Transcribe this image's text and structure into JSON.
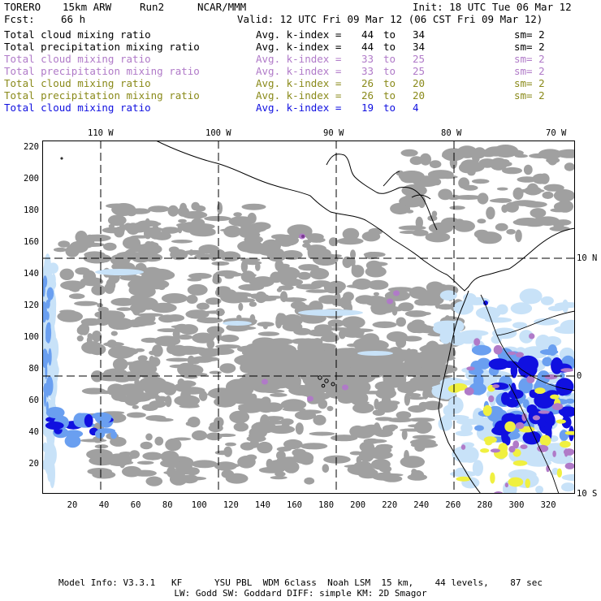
{
  "header": {
    "model": "TORERO",
    "resolution": "15km ARW",
    "run": "Run2",
    "org": "NCAR/MMM",
    "init": "Init: 18 UTC Tue 06 Mar 12",
    "fcst_label": "Fcst:",
    "fcst_value": "66 h",
    "valid": "Valid: 12 UTC Fri 09 Mar 12 (06 CST Fri 09 Mar 12)"
  },
  "legend": [
    {
      "field": "Total cloud mixing ratio",
      "k_label": "Avg. k-index =",
      "from": "44",
      "to_word": "to",
      "to": "34",
      "sm": "sm= 2",
      "color": "#000000"
    },
    {
      "field": "Total precipitation mixing ratio",
      "k_label": "Avg. k-index =",
      "from": "44",
      "to_word": "to",
      "to": "34",
      "sm": "sm= 2",
      "color": "#000000"
    },
    {
      "field": "Total cloud mixing ratio",
      "k_label": "Avg. k-index =",
      "from": "33",
      "to_word": "to",
      "to": "25",
      "sm": "sm= 2",
      "color": "#b07ac8"
    },
    {
      "field": "Total precipitation mixing ratio",
      "k_label": "Avg. k-index =",
      "from": "33",
      "to_word": "to",
      "to": "25",
      "sm": "sm= 2",
      "color": "#b07ac8"
    },
    {
      "field": "Total cloud mixing ratio",
      "k_label": "Avg. k-index =",
      "from": "26",
      "to_word": "to",
      "to": "20",
      "sm": "sm= 2",
      "color": "#8a8a1a"
    },
    {
      "field": "Total precipitation mixing ratio",
      "k_label": "Avg. k-index =",
      "from": "26",
      "to_word": "to",
      "to": "20",
      "sm": "sm= 2",
      "color": "#8a8a1a"
    },
    {
      "field": "Total cloud mixing ratio",
      "k_label": "Avg. k-index =",
      "from": "19",
      "to_word": "to",
      "to": "4",
      "sm": "",
      "color": "#1010e0"
    }
  ],
  "map": {
    "lon_labels": [
      "110 W",
      "100 W",
      "90 W",
      "80 W",
      "70 W"
    ],
    "lat_labels": [
      "10 N",
      "0",
      "10 S"
    ],
    "y_ticks": [
      "220",
      "200",
      "180",
      "160",
      "140",
      "120",
      "100",
      "80",
      "60",
      "40",
      "20"
    ],
    "x_ticks": [
      "20",
      "40",
      "60",
      "80",
      "100",
      "120",
      "140",
      "160",
      "180",
      "200",
      "220",
      "240",
      "260",
      "280",
      "300",
      "320"
    ],
    "colors": {
      "cloud": "#a0a0a0",
      "light_blue": "#c8e2f8",
      "mid_blue": "#6a9ff0",
      "deep_blue": "#1010e0",
      "purple": "#b07ac8",
      "yellow": "#f0f040"
    }
  },
  "footer": {
    "line1": "Model Info: V3.3.1   KF      YSU PBL  WDM 6class  Noah LSM  15 km,    44 levels,    87 sec",
    "line2": "LW: Godd SW: Goddard DIFF: simple KM: 2D Smagor"
  }
}
